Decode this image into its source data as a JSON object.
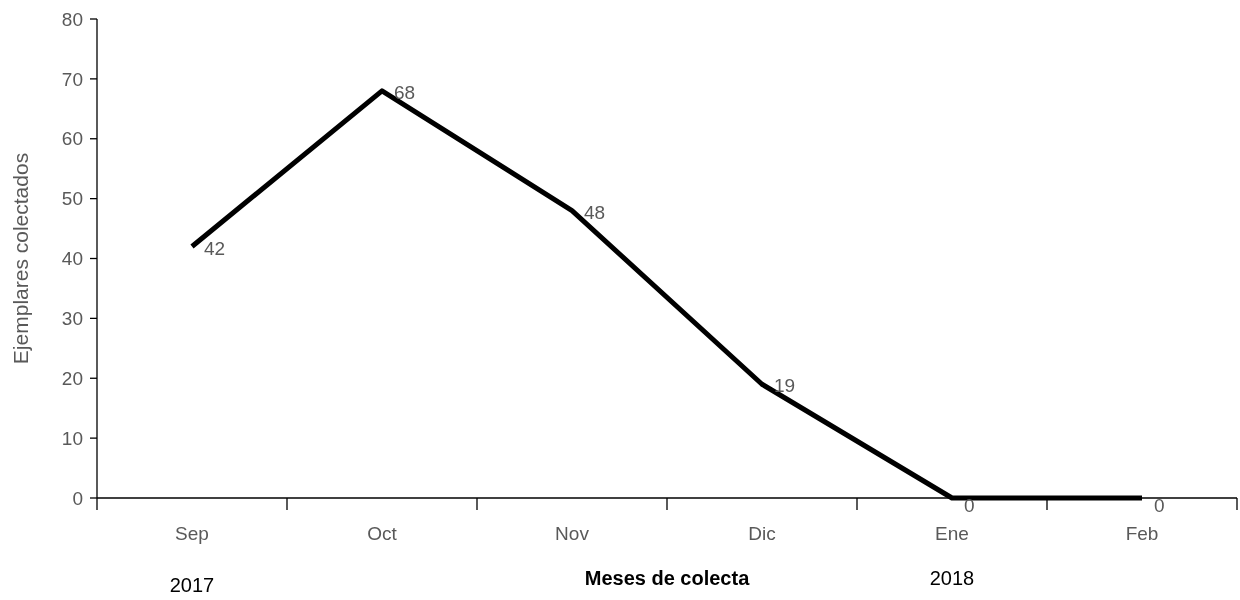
{
  "chart_data": {
    "type": "line",
    "xlabel": "Meses de colecta",
    "ylabel": "Ejemplares colectados",
    "categories": [
      "Sep",
      "Oct",
      "Nov",
      "Dic",
      "Ene",
      "Feb"
    ],
    "series": [
      {
        "color": "#000000",
        "values": [
          42,
          68,
          48,
          19,
          0,
          0
        ]
      }
    ],
    "ylim": [
      0,
      80
    ],
    "yticks": [
      0,
      10,
      20,
      30,
      40,
      50,
      60,
      70,
      80
    ],
    "grid": false,
    "marker": "none",
    "line_style": "solid",
    "data_labels": true,
    "annotations": [
      "2017",
      "2018"
    ]
  }
}
